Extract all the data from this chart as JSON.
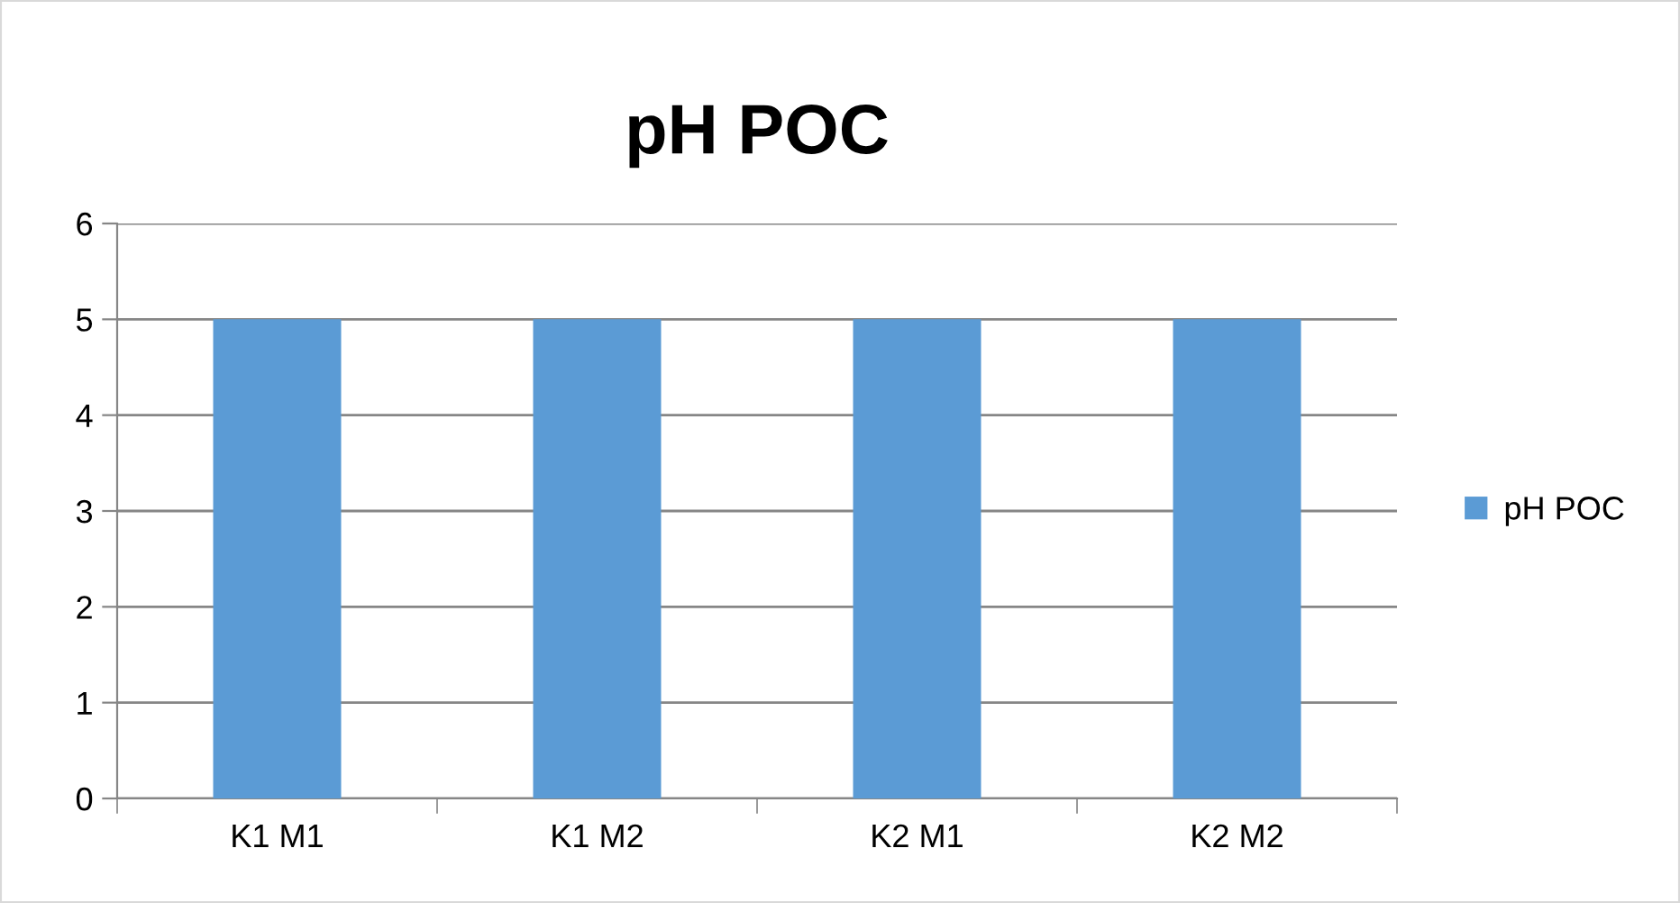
{
  "chart_data": {
    "type": "bar",
    "title": "pH POC",
    "categories": [
      "K1 M1",
      "K1 M2",
      "K2 M1",
      "K2 M2"
    ],
    "series": [
      {
        "name": "pH POC",
        "color": "#5b9bd5",
        "values": [
          5,
          5,
          5,
          5
        ]
      }
    ],
    "ylim": [
      0,
      6
    ],
    "yticks": [
      0,
      1,
      2,
      3,
      4,
      5,
      6
    ],
    "grid": "y",
    "legend": "right"
  }
}
